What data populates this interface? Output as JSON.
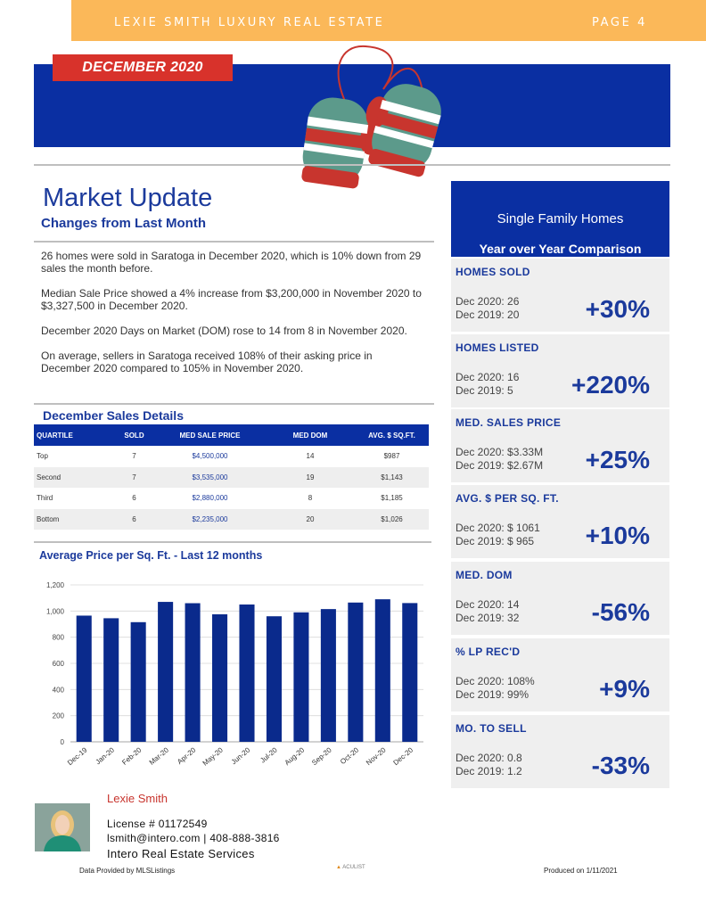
{
  "header": {
    "brand": "LEXIE SMITH LUXURY REAL ESTATE",
    "page": "PAGE 4"
  },
  "banner": {
    "month": "DECEMBER 2020",
    "city": "Saratoga"
  },
  "market_update": {
    "title": "Market Update",
    "subtitle": "Changes from Last Month",
    "paragraphs": [
      "26 homes were sold in Saratoga in December 2020, which is 10% down from 29 sales the month before.",
      "Median Sale Price showed a 4% increase  from $3,200,000 in November 2020 to $3,327,500 in December 2020.",
      "December 2020 Days on Market (DOM)  rose to 14 from 8 in November 2020.",
      "On average, sellers in Saratoga received 108% of their asking price in December 2020 compared to 105% in November 2020."
    ]
  },
  "sales_details": {
    "title": "December Sales Details",
    "columns": [
      "QUARTILE",
      "SOLD",
      "MED SALE PRICE",
      "MED DOM",
      "AVG. $ SQ.FT."
    ],
    "rows": [
      [
        "Top",
        "7",
        "$4,500,000",
        "14",
        "$987"
      ],
      [
        "Second",
        "7",
        "$3,535,000",
        "19",
        "$1,143"
      ],
      [
        "Third",
        "6",
        "$2,880,000",
        "8",
        "$1,185"
      ],
      [
        "Bottom",
        "6",
        "$2,235,000",
        "20",
        "$1,026"
      ]
    ]
  },
  "chart_title": "Average Price per Sq. Ft. - Last 12 months",
  "chart_data": {
    "type": "bar",
    "title": "Average Price per Sq. Ft. - Last 12 months",
    "categories": [
      "Dec-19",
      "Jan-20",
      "Feb-20",
      "Mar-20",
      "Apr-20",
      "May-20",
      "Jun-20",
      "Jul-20",
      "Aug-20",
      "Sep-20",
      "Oct-20",
      "Nov-20",
      "Dec-20"
    ],
    "values": [
      965,
      945,
      915,
      1070,
      1060,
      975,
      1050,
      960,
      990,
      1015,
      1065,
      1090,
      1061
    ],
    "yticks": [
      "0",
      "200",
      "400",
      "600",
      "800",
      "1,000",
      "1,200"
    ],
    "ylim": [
      0,
      1200
    ],
    "grid": true,
    "color": "#0a2a8c"
  },
  "yoy": {
    "title": "Single Family Homes",
    "subtitle": "Year over Year Comparison",
    "metrics": [
      {
        "label": "HOMES SOLD",
        "line1": "Dec 2020:  26",
        "line2": "Dec 2019:  20",
        "pct": "+30%"
      },
      {
        "label": "HOMES LISTED",
        "line1": "Dec 2020:  16",
        "line2": "Dec 2019:  5",
        "pct": "+220%"
      },
      {
        "label": "MED. SALES PRICE",
        "line1": "Dec 2020:  $3.33M",
        "line2": "Dec 2019:  $2.67M",
        "pct": "+25%"
      },
      {
        "label": "AVG. $ PER SQ. FT.",
        "line1": "Dec 2020:  $ 1061",
        "line2": "Dec 2019:  $ 965",
        "pct": "+10%"
      },
      {
        "label": "MED. DOM",
        "line1": "Dec 2020:   14",
        "line2": "Dec 2019:   32",
        "pct": "-56%"
      },
      {
        "label": "% LP REC'D",
        "line1": "Dec 2020:   108%",
        "line2": "Dec 2019:   99%",
        "pct": "+9%"
      },
      {
        "label": "MO. TO SELL",
        "line1": "Dec 2020:   0.8",
        "line2": "Dec 2019:   1.2",
        "pct": "-33%"
      }
    ]
  },
  "agent": {
    "name": "Lexie Smith",
    "license": "License # 01172549",
    "contact": "lsmith@intero.com  |  408-888-3816",
    "company": "Intero Real Estate Services"
  },
  "footer": {
    "left": "Data Provided by MLSListings",
    "center": "ACULIST",
    "right": "Produced on 1/11/2021"
  }
}
